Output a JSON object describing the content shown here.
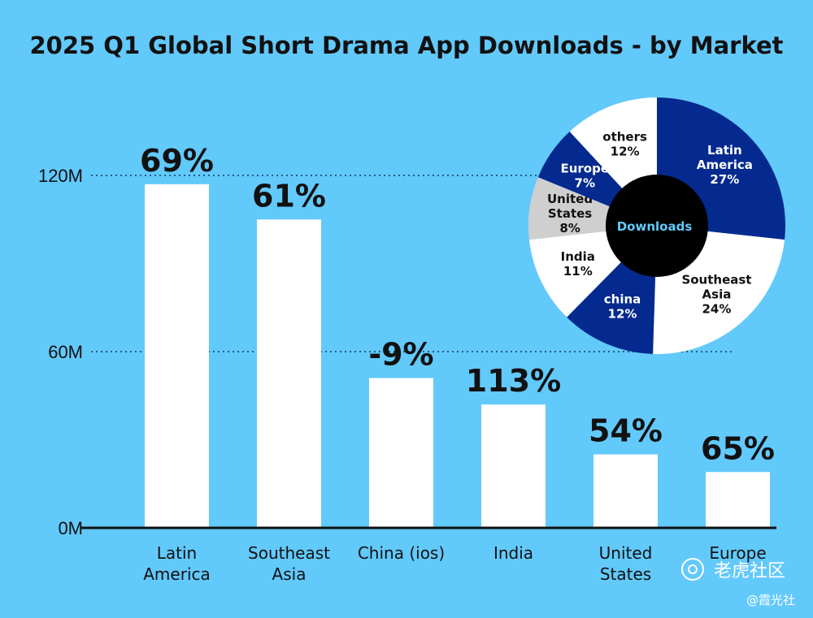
{
  "chart_data": [
    {
      "type": "bar",
      "title": "2025 Q1 Global Short Drama App Downloads - by Market",
      "yticks": [
        "0M",
        "60M",
        "120M"
      ],
      "ytick_values": [
        0,
        60,
        120
      ],
      "ylim": [
        0,
        132
      ],
      "grid": "dotted at 60M and 120M",
      "categories": [
        [
          "Latin",
          "America"
        ],
        [
          "Southeast",
          "Asia"
        ],
        [
          "China (ios)"
        ],
        [
          "India"
        ],
        [
          "United",
          "States"
        ],
        [
          "Europe"
        ]
      ],
      "values": [
        117,
        105,
        51,
        42,
        25,
        19
      ],
      "growth_labels": [
        "69%",
        "61%",
        "-9%",
        "113%",
        "54%",
        "65%"
      ],
      "bar_color": "#ffffff"
    },
    {
      "type": "pie",
      "center_label": "Downloads",
      "slices": [
        {
          "lines": [
            "Latin",
            "America",
            "27%"
          ],
          "value": 27,
          "color": "#042a8f",
          "text_color": "#ffffff"
        },
        {
          "lines": [
            "Southeast",
            "Asia",
            "24%"
          ],
          "value": 24,
          "color": "#ffffff",
          "text_color": "#111111"
        },
        {
          "lines": [
            "china",
            "12%"
          ],
          "value": 12,
          "color": "#042a8f",
          "text_color": "#ffffff"
        },
        {
          "lines": [
            "India",
            "11%"
          ],
          "value": 11,
          "color": "#ffffff",
          "text_color": "#111111"
        },
        {
          "lines": [
            "United",
            "States",
            "8%"
          ],
          "value": 8,
          "color": "#cfcfcf",
          "text_color": "#111111"
        },
        {
          "lines": [
            "Europe",
            "7%"
          ],
          "value": 7,
          "color": "#042a8f",
          "text_color": "#ffffff"
        },
        {
          "lines": [
            "others",
            "12%"
          ],
          "value": 12,
          "color": "#ffffff",
          "text_color": "#111111"
        }
      ]
    }
  ],
  "watermark": {
    "brand": "老虎社区",
    "handle": "@霞光社"
  }
}
